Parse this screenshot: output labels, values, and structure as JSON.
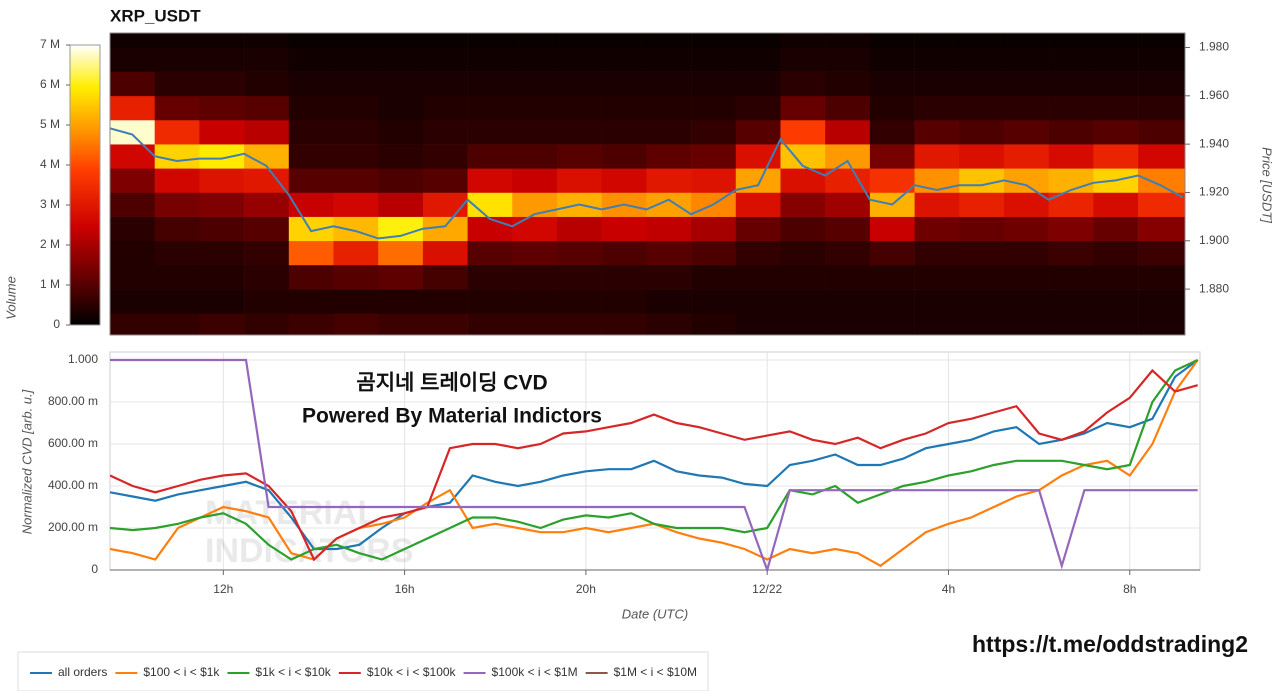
{
  "chart_data": [
    {
      "type": "heatmap",
      "title": "XRP_USDT",
      "ylabel": "Price [USDT]",
      "colorbar_label": "Volume",
      "xlim": [
        9.5,
        33.55
      ],
      "ylim": [
        1.861,
        1.986
      ],
      "yticks": [
        {
          "value": 1.88,
          "label": "1.880"
        },
        {
          "value": 1.9,
          "label": "1.900"
        },
        {
          "value": 1.92,
          "label": "1.920"
        },
        {
          "value": 1.94,
          "label": "1.940"
        },
        {
          "value": 1.96,
          "label": "1.960"
        },
        {
          "value": 1.98,
          "label": "1.980"
        }
      ],
      "x_edges": [
        9.5,
        10.5,
        11.5,
        12.5,
        13.5,
        14.5,
        15.5,
        16.5,
        17.5,
        18.5,
        19.5,
        20.5,
        21.5,
        22.5,
        23.5,
        24.5,
        25.5,
        26.5,
        27.5,
        28.5,
        29.5,
        30.5,
        31.5,
        32.5,
        33.55
      ],
      "y_edges": [
        1.86,
        1.87,
        1.88,
        1.89,
        1.9,
        1.91,
        1.92,
        1.93,
        1.94,
        1.95,
        1.96,
        1.97,
        1.98,
        1.99
      ],
      "zlim": [
        0,
        7000000
      ],
      "zticks": [
        0,
        {
          "value": 1000000,
          "label": "1 M"
        },
        {
          "value": 2000000,
          "label": "2 M"
        },
        {
          "value": 3000000,
          "label": "3 M"
        },
        {
          "value": 4000000,
          "label": "4 M"
        },
        {
          "value": 5000000,
          "label": "5 M"
        },
        {
          "value": 6000000,
          "label": "6 M"
        },
        {
          "value": 7000000,
          "label": "7 M"
        }
      ],
      "colorscale": [
        [
          0,
          "#000000"
        ],
        [
          0.15,
          "#5a0000"
        ],
        [
          0.35,
          "#cc0000"
        ],
        [
          0.55,
          "#ff3c00"
        ],
        [
          0.7,
          "#ff9900"
        ],
        [
          0.85,
          "#ffee00"
        ],
        [
          1,
          "#ffffff"
        ]
      ],
      "z": [
        [
          600000,
          300000,
          400000,
          400000,
          500000,
          900000,
          1500000,
          2600000,
          6800000,
          3200000,
          900000,
          300000,
          200000
        ],
        [
          600000,
          300000,
          400000,
          500000,
          800000,
          1400000,
          2600000,
          5600000,
          3400000,
          1200000,
          500000,
          300000,
          200000
        ],
        [
          700000,
          300000,
          400000,
          500000,
          900000,
          1500000,
          2900000,
          5900000,
          2400000,
          1100000,
          500000,
          300000,
          200000
        ],
        [
          600000,
          400000,
          500000,
          600000,
          1000000,
          1800000,
          3000000,
          5200000,
          2200000,
          1000000,
          400000,
          300000,
          200000
        ],
        [
          700000,
          400000,
          900000,
          4200000,
          5600000,
          2400000,
          1000000,
          600000,
          500000,
          400000,
          300000,
          200000,
          100000
        ],
        [
          800000,
          400000,
          1000000,
          3200000,
          5300000,
          2600000,
          1000000,
          600000,
          500000,
          400000,
          300000,
          200000,
          100000
        ],
        [
          700000,
          400000,
          1100000,
          4400000,
          6000000,
          2200000,
          900000,
          500000,
          400000,
          300000,
          300000,
          200000,
          100000
        ],
        [
          700000,
          400000,
          800000,
          2800000,
          5100000,
          3000000,
          1000000,
          600000,
          500000,
          400000,
          300000,
          200000,
          100000
        ],
        [
          600000,
          400000,
          500000,
          1000000,
          2400000,
          5800000,
          2600000,
          900000,
          500000,
          400000,
          300000,
          200000,
          100000
        ],
        [
          600000,
          400000,
          500000,
          1100000,
          2600000,
          4900000,
          2400000,
          900000,
          500000,
          400000,
          300000,
          200000,
          100000
        ],
        [
          600000,
          400000,
          500000,
          1000000,
          2200000,
          5200000,
          2800000,
          1000000,
          500000,
          400000,
          300000,
          200000,
          100000
        ],
        [
          600000,
          400000,
          500000,
          900000,
          2400000,
          4800000,
          2600000,
          900000,
          500000,
          400000,
          300000,
          200000,
          100000
        ],
        [
          500000,
          300000,
          500000,
          1000000,
          2300000,
          5000000,
          3000000,
          1100000,
          500000,
          400000,
          300000,
          200000,
          100000
        ],
        [
          400000,
          300000,
          400000,
          900000,
          2000000,
          4700000,
          2900000,
          1200000,
          600000,
          400000,
          300000,
          200000,
          100000
        ],
        [
          300000,
          300000,
          400000,
          600000,
          1200000,
          2800000,
          5000000,
          2800000,
          1000000,
          500000,
          300000,
          200000,
          100000
        ],
        [
          300000,
          300000,
          400000,
          500000,
          900000,
          1600000,
          2800000,
          5400000,
          3800000,
          1200000,
          500000,
          300000,
          200000
        ],
        [
          300000,
          300000,
          400000,
          600000,
          1000000,
          1900000,
          3200000,
          4900000,
          2200000,
          900000,
          400000,
          300000,
          200000
        ],
        [
          300000,
          300000,
          400000,
          800000,
          2400000,
          5200000,
          3600000,
          1400000,
          600000,
          400000,
          300000,
          200000,
          100000
        ],
        [
          300000,
          300000,
          400000,
          600000,
          1300000,
          2900000,
          4800000,
          3000000,
          1000000,
          500000,
          300000,
          200000,
          100000
        ],
        [
          300000,
          300000,
          400000,
          600000,
          1200000,
          3200000,
          5400000,
          2800000,
          900000,
          500000,
          300000,
          200000,
          100000
        ],
        [
          300000,
          300000,
          400000,
          600000,
          1300000,
          2800000,
          5000000,
          3100000,
          1000000,
          500000,
          300000,
          200000,
          100000
        ],
        [
          300000,
          300000,
          400000,
          700000,
          1500000,
          3300000,
          5200000,
          2700000,
          900000,
          500000,
          300000,
          200000,
          100000
        ],
        [
          300000,
          300000,
          400000,
          600000,
          1200000,
          2700000,
          5600000,
          3300000,
          1000000,
          500000,
          300000,
          200000,
          100000
        ],
        [
          300000,
          300000,
          400000,
          700000,
          1600000,
          3400000,
          4600000,
          2600000,
          900000,
          500000,
          300000,
          200000,
          100000
        ]
      ],
      "x": [
        9.5,
        10,
        10.5,
        11,
        11.5,
        12,
        12.5,
        13,
        13.5,
        14,
        14.5,
        15,
        15.5,
        16,
        16.5,
        17,
        17.5,
        18,
        18.5,
        19,
        19.5,
        20,
        20.5,
        21,
        21.5,
        22,
        22.5,
        23,
        23.5,
        24,
        24.5,
        25,
        25.5,
        26,
        26.5,
        27,
        27.5,
        28,
        28.5,
        29,
        29.5,
        30,
        30.5,
        31,
        31.5,
        32,
        32.5,
        33,
        33.5
      ],
      "series": [
        {
          "color": "#3f7fb5",
          "values": [
            1.9465,
            1.944,
            1.935,
            1.933,
            1.934,
            1.934,
            1.936,
            1.931,
            1.919,
            1.904,
            1.906,
            1.904,
            1.901,
            1.902,
            1.905,
            1.906,
            1.917,
            1.909,
            1.906,
            1.911,
            1.913,
            1.915,
            1.913,
            1.915,
            1.913,
            1.917,
            1.911,
            1.915,
            1.921,
            1.923,
            1.942,
            1.931,
            1.927,
            1.933,
            1.917,
            1.915,
            1.923,
            1.921,
            1.923,
            1.923,
            1.925,
            1.923,
            1.917,
            1.921,
            1.924,
            1.925,
            1.927,
            1.923,
            1.918
          ]
        }
      ]
    },
    {
      "type": "line",
      "ylabel": "Normalized CVD [arb. u.]",
      "xlabel": "Date (UTC)",
      "annotations": [
        "곰지네 트레이딩 CVD",
        "Powered By Material Indictors"
      ],
      "watermark": [
        "MATERIAL",
        "INDICATORS"
      ],
      "xlim": [
        9.5,
        33.55
      ],
      "xticks": [
        {
          "value": 12,
          "label": "12h"
        },
        {
          "value": 16,
          "label": "16h"
        },
        {
          "value": 20,
          "label": "20h"
        },
        {
          "value": 24,
          "label": "12/22"
        },
        {
          "value": 28,
          "label": "4h"
        },
        {
          "value": 32,
          "label": "8h"
        }
      ],
      "ylim": [
        0,
        1.0
      ],
      "yticks": [
        0,
        {
          "value": 0.2,
          "label": "200.00 m"
        },
        {
          "value": 0.4,
          "label": "400.00 m"
        },
        {
          "value": 0.6,
          "label": "600.00 m"
        },
        {
          "value": 0.8,
          "label": "800.00 m"
        },
        {
          "value": 1.0,
          "label": "1.000"
        }
      ],
      "grid": true,
      "legend": "bottom-left",
      "x": [
        9.5,
        10,
        10.5,
        11,
        11.5,
        12,
        12.5,
        13,
        13.5,
        14,
        14.5,
        15,
        15.5,
        16,
        16.5,
        17,
        17.5,
        18,
        18.5,
        19,
        19.5,
        20,
        20.5,
        21,
        21.5,
        22,
        22.5,
        23,
        23.5,
        24,
        24.5,
        25,
        25.5,
        26,
        26.5,
        27,
        27.5,
        28,
        28.5,
        29,
        29.5,
        30,
        30.5,
        31,
        31.5,
        32,
        32.5,
        33,
        33.5
      ],
      "series": [
        {
          "name": "all orders",
          "color": "#1f77b4",
          "values": [
            0.37,
            0.35,
            0.33,
            0.36,
            0.38,
            0.4,
            0.42,
            0.38,
            0.25,
            0.1,
            0.1,
            0.12,
            0.2,
            0.27,
            0.3,
            0.32,
            0.45,
            0.42,
            0.4,
            0.42,
            0.45,
            0.47,
            0.48,
            0.48,
            0.52,
            0.47,
            0.45,
            0.44,
            0.41,
            0.4,
            0.5,
            0.52,
            0.55,
            0.5,
            0.5,
            0.53,
            0.58,
            0.6,
            0.62,
            0.66,
            0.68,
            0.6,
            0.62,
            0.65,
            0.7,
            0.68,
            0.72,
            0.92,
            1.0
          ]
        },
        {
          "name": "$100 < i < $1k",
          "color": "#ff7f0e",
          "values": [
            0.1,
            0.08,
            0.05,
            0.2,
            0.25,
            0.3,
            0.28,
            0.25,
            0.08,
            0.05,
            0.15,
            0.2,
            0.22,
            0.25,
            0.32,
            0.38,
            0.2,
            0.22,
            0.2,
            0.18,
            0.18,
            0.2,
            0.18,
            0.2,
            0.22,
            0.18,
            0.15,
            0.13,
            0.1,
            0.05,
            0.1,
            0.08,
            0.1,
            0.08,
            0.02,
            0.1,
            0.18,
            0.22,
            0.25,
            0.3,
            0.35,
            0.38,
            0.45,
            0.5,
            0.52,
            0.45,
            0.6,
            0.85,
            1.0
          ]
        },
        {
          "name": "$1k < i < $10k",
          "color": "#2ca02c",
          "values": [
            0.2,
            0.19,
            0.2,
            0.22,
            0.25,
            0.27,
            0.22,
            0.12,
            0.05,
            0.1,
            0.12,
            0.08,
            0.05,
            0.1,
            0.15,
            0.2,
            0.25,
            0.25,
            0.23,
            0.2,
            0.24,
            0.26,
            0.25,
            0.27,
            0.22,
            0.2,
            0.2,
            0.2,
            0.18,
            0.2,
            0.38,
            0.36,
            0.4,
            0.32,
            0.36,
            0.4,
            0.42,
            0.45,
            0.47,
            0.5,
            0.52,
            0.52,
            0.52,
            0.5,
            0.48,
            0.5,
            0.8,
            0.95,
            1.0
          ]
        },
        {
          "name": "$10k < i < $100k",
          "color": "#d62728",
          "values": [
            0.45,
            0.4,
            0.37,
            0.4,
            0.43,
            0.45,
            0.46,
            0.4,
            0.28,
            0.05,
            0.15,
            0.2,
            0.25,
            0.27,
            0.3,
            0.58,
            0.6,
            0.6,
            0.58,
            0.6,
            0.65,
            0.66,
            0.68,
            0.7,
            0.74,
            0.7,
            0.68,
            0.65,
            0.62,
            0.64,
            0.66,
            0.62,
            0.6,
            0.63,
            0.58,
            0.62,
            0.65,
            0.7,
            0.72,
            0.75,
            0.78,
            0.65,
            0.62,
            0.66,
            0.75,
            0.82,
            0.95,
            0.85,
            0.88
          ]
        },
        {
          "name": "$100k < i < $1M",
          "color": "#9467bd",
          "values": [
            1.0,
            1.0,
            1.0,
            1.0,
            1.0,
            1.0,
            1.0,
            0.3,
            0.3,
            0.3,
            0.3,
            0.3,
            0.3,
            0.3,
            0.3,
            0.3,
            0.3,
            0.3,
            0.3,
            0.3,
            0.3,
            0.3,
            0.3,
            0.3,
            0.3,
            0.3,
            0.3,
            0.3,
            0.3,
            0,
            0.38,
            0.38,
            0.38,
            0.38,
            0.38,
            0.38,
            0.38,
            0.38,
            0.38,
            0.38,
            0.38,
            0.38,
            0.02,
            0.38,
            0.38,
            0.38,
            0.38,
            0.38,
            0.38
          ]
        },
        {
          "name": "$1M < i < $10M",
          "color": "#8c564b",
          "values": [
            null,
            null,
            null,
            null,
            null,
            null,
            null,
            null,
            null,
            null,
            null,
            null,
            null,
            null,
            null,
            null,
            null,
            null,
            null,
            null,
            null,
            null,
            null,
            null,
            null,
            null,
            null,
            null,
            null,
            null,
            null,
            null,
            null,
            null,
            null,
            null,
            null,
            null,
            null,
            null,
            null,
            null,
            null,
            null,
            null,
            null,
            null,
            null,
            null
          ]
        }
      ]
    }
  ],
  "link": "https://t.me/oddstrading2"
}
